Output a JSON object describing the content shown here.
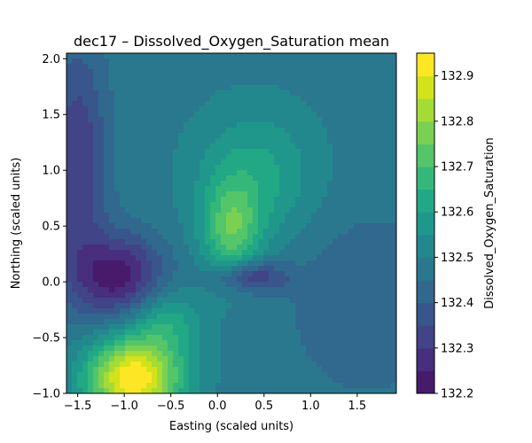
{
  "chart_data": {
    "type": "heatmap",
    "subtype": "filled-contour",
    "title": "dec17 – Dissolved_Oxygen_Saturation mean",
    "xlabel": "Easting (scaled units)",
    "ylabel": "Northing (scaled units)",
    "colorbar_label": "Dissolved_Oxygen_Saturation",
    "colormap": "viridis",
    "xlim": [
      -1.62,
      1.92
    ],
    "ylim": [
      -1.0,
      2.05
    ],
    "x_ticks": [
      -1.5,
      -1.0,
      -0.5,
      0.0,
      0.5,
      1.0,
      1.5
    ],
    "x_tick_labels": [
      "−1.5",
      "−1.0",
      "−0.5",
      "0.0",
      "0.5",
      "1.0",
      "1.5"
    ],
    "y_ticks": [
      -1.0,
      -0.5,
      0.0,
      0.5,
      1.0,
      1.5,
      2.0
    ],
    "y_tick_labels": [
      "−1.0",
      "−0.5",
      "0.0",
      "0.5",
      "1.0",
      "1.5",
      "2.0"
    ],
    "colorbar_range": [
      132.2,
      132.95
    ],
    "colorbar_ticks": [
      132.2,
      132.3,
      132.4,
      132.5,
      132.6,
      132.7,
      132.8,
      132.9
    ],
    "colorbar_tick_labels": [
      "132.2",
      "132.3",
      "132.4",
      "132.5",
      "132.6",
      "132.7",
      "132.8",
      "132.9"
    ],
    "levels": [
      132.2,
      132.25,
      132.3,
      132.35,
      132.4,
      132.45,
      132.5,
      132.55,
      132.6,
      132.65,
      132.7,
      132.75,
      132.8,
      132.85,
      132.9,
      132.95
    ],
    "level_colors": [
      "#481a6c",
      "#472f7d",
      "#414487",
      "#39568c",
      "#31688e",
      "#2a788e",
      "#23888e",
      "#1f988b",
      "#22a884",
      "#35b779",
      "#54c568",
      "#7ad151",
      "#a5db36",
      "#d2e21b",
      "#fde725"
    ],
    "background_value": 132.48,
    "features": [
      {
        "kind": "high",
        "x": -0.9,
        "y": -0.87,
        "value": 132.95,
        "sx": 0.36,
        "sy": 0.26
      },
      {
        "kind": "high",
        "x": -0.55,
        "y": -0.35,
        "value": 132.62,
        "sx": 0.28,
        "sy": 0.22
      },
      {
        "kind": "high",
        "x": 0.15,
        "y": 0.45,
        "value": 132.7,
        "sx": 0.22,
        "sy": 0.3
      },
      {
        "kind": "high",
        "x": 0.4,
        "y": 0.95,
        "value": 132.62,
        "sx": 0.45,
        "sy": 0.42
      },
      {
        "kind": "low",
        "x": -1.05,
        "y": 0.05,
        "value": 132.22,
        "sx": 0.33,
        "sy": 0.26
      },
      {
        "kind": "low",
        "x": 0.35,
        "y": 0.05,
        "value": 132.28,
        "sx": 0.28,
        "sy": 0.1
      },
      {
        "kind": "low",
        "x": -1.5,
        "y": 1.05,
        "value": 132.3,
        "sx": 0.22,
        "sy": 0.75
      },
      {
        "kind": "low",
        "x": 1.6,
        "y": -0.2,
        "value": 132.4,
        "sx": 0.55,
        "sy": 0.55
      }
    ]
  }
}
